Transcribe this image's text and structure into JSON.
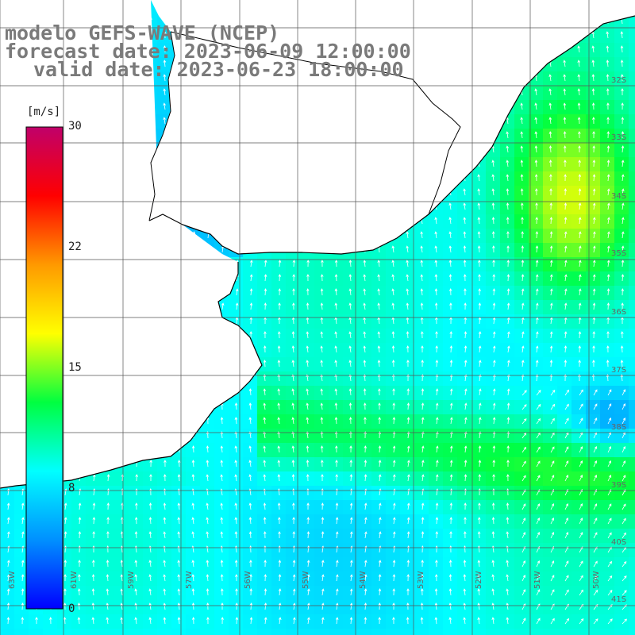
{
  "title": {
    "line1": "modelo GEFS-WAVE (NCEP)",
    "line2": "forecast date: 2023-06-09 12:00:00",
    "line3": "valid date: 2023-06-23 18:00:00"
  },
  "colorbar": {
    "unit": "[m/s]",
    "ticks": [
      "30",
      "22",
      "15",
      "8",
      "0"
    ],
    "tick_values": [
      30,
      22,
      15,
      8,
      0
    ],
    "range": [
      0,
      30
    ],
    "stops": [
      "#0000ff",
      "#0090ff",
      "#00ffff",
      "#00ff40",
      "#ffff00",
      "#ff9900",
      "#ff0000",
      "#c0006a"
    ]
  },
  "map": {
    "lon_labels": [
      "63W",
      "61W",
      "59W",
      "57W",
      "56W",
      "55W",
      "54W",
      "53W",
      "52W",
      "51W",
      "50W"
    ],
    "lat_labels": [
      "32S",
      "33S",
      "34S",
      "35S",
      "36S",
      "37S",
      "38S",
      "39S",
      "40S",
      "41S"
    ],
    "land_color": "#ffffff",
    "arrow_color": "#ffffff",
    "grid_color": "#555555",
    "coast_color": "#000000"
  }
}
